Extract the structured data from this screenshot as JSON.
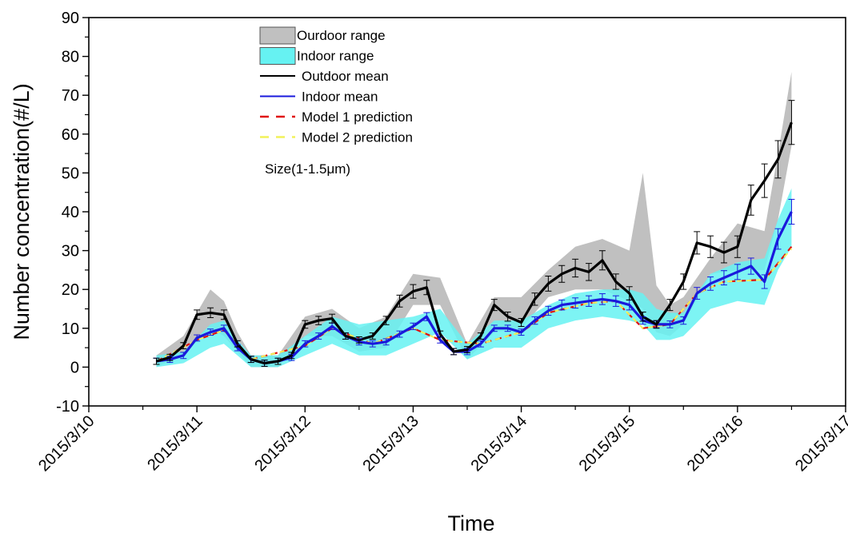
{
  "chart_data": {
    "type": "line",
    "xlabel": "Time",
    "ylabel": "Number concentration(#/L)",
    "ylim": [
      -10,
      90
    ],
    "yticks": [
      -10,
      0,
      10,
      20,
      30,
      40,
      50,
      60,
      70,
      80,
      90
    ],
    "xlim": [
      "2015/3/10",
      "2015/3/17"
    ],
    "xticks": [
      "2015/3/10",
      "2015/3/11",
      "2015/3/12",
      "2015/3/13",
      "2015/3/14",
      "2015/3/15",
      "2015/3/16",
      "2015/3/17"
    ],
    "legend_position": "top-left",
    "annotation": "Size(1-1.5μm)",
    "legend": [
      {
        "label": "Ourdoor range",
        "kind": "band",
        "color": "#c0c0c0"
      },
      {
        "label": "Indoor range",
        "kind": "band",
        "color": "#66f2f2"
      },
      {
        "label": "Outdoor mean",
        "kind": "line",
        "color": "#000000"
      },
      {
        "label": "Indoor mean",
        "kind": "line",
        "color": "#1a1adc"
      },
      {
        "label": "Model 1 prediction",
        "kind": "dash",
        "color": "#e01010"
      },
      {
        "label": "Model 2 prediction",
        "kind": "dash",
        "color": "#f2f25a"
      }
    ],
    "series": [
      {
        "name": "Outdoor mean",
        "color": "#000000",
        "x": [
          "2015/3/10 15:00",
          "2015/3/10 18:00",
          "2015/3/10 21:00",
          "2015/3/11 00:00",
          "2015/3/11 03:00",
          "2015/3/11 06:00",
          "2015/3/11 09:00",
          "2015/3/11 12:00",
          "2015/3/11 15:00",
          "2015/3/11 18:00",
          "2015/3/11 21:00",
          "2015/3/12 00:00",
          "2015/3/12 03:00",
          "2015/3/12 06:00",
          "2015/3/12 09:00",
          "2015/3/12 12:00",
          "2015/3/12 15:00",
          "2015/3/12 18:00",
          "2015/3/12 21:00",
          "2015/3/13 00:00",
          "2015/3/13 03:00",
          "2015/3/13 06:00",
          "2015/3/13 09:00",
          "2015/3/13 12:00",
          "2015/3/13 15:00",
          "2015/3/13 18:00",
          "2015/3/13 21:00",
          "2015/3/14 00:00",
          "2015/3/14 03:00",
          "2015/3/14 06:00",
          "2015/3/14 09:00",
          "2015/3/14 12:00",
          "2015/3/14 15:00",
          "2015/3/14 18:00",
          "2015/3/14 21:00",
          "2015/3/15 00:00",
          "2015/3/15 03:00",
          "2015/3/15 06:00",
          "2015/3/15 09:00",
          "2015/3/15 12:00",
          "2015/3/15 15:00",
          "2015/3/15 18:00",
          "2015/3/15 21:00",
          "2015/3/16 00:00",
          "2015/3/16 03:00",
          "2015/3/16 06:00",
          "2015/3/16 09:00",
          "2015/3/16 12:00"
        ],
        "values": [
          1.5,
          2.5,
          5.5,
          13.5,
          14.0,
          13.5,
          6.0,
          2.0,
          1.0,
          1.5,
          3.0,
          11.0,
          12.0,
          12.5,
          8.0,
          7.0,
          8.0,
          12.0,
          17.0,
          19.5,
          20.5,
          8.5,
          4.0,
          4.5,
          8.0,
          16.0,
          13.0,
          11.5,
          17.5,
          21.5,
          24.0,
          25.5,
          24.5,
          27.5,
          22.0,
          19.0,
          13.0,
          11.0,
          16.0,
          22.0,
          32.0,
          31.0,
          29.5,
          31.0,
          43.0,
          48.0,
          53.5,
          63.0
        ]
      },
      {
        "name": "Indoor mean",
        "color": "#1a1adc",
        "x": [
          "2015/3/10 15:00",
          "2015/3/10 18:00",
          "2015/3/10 21:00",
          "2015/3/11 00:00",
          "2015/3/11 03:00",
          "2015/3/11 06:00",
          "2015/3/11 09:00",
          "2015/3/11 12:00",
          "2015/3/11 15:00",
          "2015/3/11 18:00",
          "2015/3/11 21:00",
          "2015/3/12 00:00",
          "2015/3/12 03:00",
          "2015/3/12 06:00",
          "2015/3/12 09:00",
          "2015/3/12 12:00",
          "2015/3/12 15:00",
          "2015/3/12 18:00",
          "2015/3/12 21:00",
          "2015/3/13 00:00",
          "2015/3/13 03:00",
          "2015/3/13 06:00",
          "2015/3/13 09:00",
          "2015/3/13 12:00",
          "2015/3/13 15:00",
          "2015/3/13 18:00",
          "2015/3/13 21:00",
          "2015/3/14 00:00",
          "2015/3/14 03:00",
          "2015/3/14 06:00",
          "2015/3/14 09:00",
          "2015/3/14 12:00",
          "2015/3/14 15:00",
          "2015/3/14 18:00",
          "2015/3/14 21:00",
          "2015/3/15 00:00",
          "2015/3/15 03:00",
          "2015/3/15 06:00",
          "2015/3/15 09:00",
          "2015/3/15 12:00",
          "2015/3/15 15:00",
          "2015/3/15 18:00",
          "2015/3/15 21:00",
          "2015/3/16 00:00",
          "2015/3/16 03:00",
          "2015/3/16 06:00",
          "2015/3/16 09:00",
          "2015/3/16 12:00"
        ],
        "values": [
          1.5,
          2.0,
          3.0,
          7.5,
          9.0,
          10.0,
          5.0,
          2.0,
          1.0,
          1.5,
          2.5,
          6.0,
          8.0,
          10.5,
          8.0,
          6.5,
          6.0,
          6.5,
          8.5,
          10.5,
          13.0,
          7.0,
          4.0,
          4.0,
          6.0,
          10.0,
          10.0,
          9.0,
          12.0,
          14.5,
          16.0,
          16.5,
          17.0,
          17.5,
          17.0,
          16.0,
          12.0,
          11.0,
          11.0,
          12.0,
          19.0,
          21.5,
          23.0,
          24.5,
          26.0,
          22.0,
          33.0,
          40.0
        ]
      },
      {
        "name": "Model 1 prediction",
        "color": "#e01010",
        "x": [
          "2015/3/10 15:00",
          "2015/3/11 00:00",
          "2015/3/11 06:00",
          "2015/3/11 12:00",
          "2015/3/12 00:00",
          "2015/3/12 06:00",
          "2015/3/12 15:00",
          "2015/3/13 00:00",
          "2015/3/13 06:00",
          "2015/3/13 15:00",
          "2015/3/14 00:00",
          "2015/3/14 06:00",
          "2015/3/14 15:00",
          "2015/3/14 21:00",
          "2015/3/15 03:00",
          "2015/3/15 09:00",
          "2015/3/15 15:00",
          "2015/3/15 21:00",
          "2015/3/16 06:00",
          "2015/3/16 12:00"
        ],
        "values": [
          1.5,
          7.0,
          9.5,
          2.0,
          5.5,
          10.0,
          6.0,
          10.0,
          7.0,
          6.0,
          9.0,
          14.0,
          16.5,
          17.0,
          10.0,
          11.0,
          19.0,
          22.0,
          22.5,
          31.0
        ]
      },
      {
        "name": "Model 2 prediction",
        "color": "#f2f25a",
        "x": [
          "2015/3/10 15:00",
          "2015/3/11 00:00",
          "2015/3/11 06:00",
          "2015/3/11 12:00",
          "2015/3/12 00:00",
          "2015/3/12 06:00",
          "2015/3/12 15:00",
          "2015/3/13 00:00",
          "2015/3/13 06:00",
          "2015/3/13 15:00",
          "2015/3/14 00:00",
          "2015/3/14 06:00",
          "2015/3/14 15:00",
          "2015/3/14 21:00",
          "2015/3/15 03:00",
          "2015/3/15 09:00",
          "2015/3/15 15:00",
          "2015/3/15 21:00",
          "2015/3/16 06:00",
          "2015/3/16 12:00"
        ],
        "values": [
          1.5,
          7.0,
          9.5,
          2.0,
          5.5,
          10.0,
          6.0,
          10.0,
          7.0,
          6.0,
          9.0,
          14.0,
          16.5,
          17.0,
          10.0,
          11.0,
          19.0,
          22.0,
          22.5,
          30.5
        ]
      }
    ],
    "bands": [
      {
        "name": "Ourdoor range",
        "color": "#c0c0c0",
        "x": [
          "2015/3/10 15:00",
          "2015/3/10 21:00",
          "2015/3/11 03:00",
          "2015/3/11 06:00",
          "2015/3/11 09:00",
          "2015/3/11 12:00",
          "2015/3/11 18:00",
          "2015/3/12 00:00",
          "2015/3/12 06:00",
          "2015/3/12 12:00",
          "2015/3/12 18:00",
          "2015/3/13 00:00",
          "2015/3/13 06:00",
          "2015/3/13 12:00",
          "2015/3/13 18:00",
          "2015/3/14 00:00",
          "2015/3/14 06:00",
          "2015/3/14 12:00",
          "2015/3/14 18:00",
          "2015/3/15 00:00",
          "2015/3/15 03:00",
          "2015/3/15 06:00",
          "2015/3/15 09:00",
          "2015/3/15 12:00",
          "2015/3/15 18:00",
          "2015/3/16 00:00",
          "2015/3/16 06:00",
          "2015/3/16 09:00",
          "2015/3/16 12:00"
        ],
        "upper": [
          3,
          8,
          20,
          17,
          9,
          3,
          3,
          13,
          15,
          10,
          13,
          24,
          23,
          6,
          18,
          18,
          25,
          31,
          33,
          30,
          50,
          21,
          16,
          18,
          28,
          37,
          35,
          55,
          76
        ],
        "lower": [
          0,
          3,
          10,
          8,
          4,
          0,
          0,
          8,
          8,
          4,
          5,
          16,
          16,
          2,
          9,
          10,
          18,
          20,
          20,
          17,
          15,
          9,
          8,
          11,
          24,
          25,
          25,
          38,
          57
        ]
      },
      {
        "name": "Indoor range",
        "color": "#66f2f2",
        "x": [
          "2015/3/10 15:00",
          "2015/3/10 21:00",
          "2015/3/11 03:00",
          "2015/3/11 06:00",
          "2015/3/11 09:00",
          "2015/3/11 12:00",
          "2015/3/11 18:00",
          "2015/3/12 00:00",
          "2015/3/12 06:00",
          "2015/3/12 12:00",
          "2015/3/12 18:00",
          "2015/3/13 00:00",
          "2015/3/13 06:00",
          "2015/3/13 12:00",
          "2015/3/13 18:00",
          "2015/3/14 00:00",
          "2015/3/14 06:00",
          "2015/3/14 12:00",
          "2015/3/14 18:00",
          "2015/3/15 00:00",
          "2015/3/15 03:00",
          "2015/3/15 06:00",
          "2015/3/15 09:00",
          "2015/3/15 12:00",
          "2015/3/15 18:00",
          "2015/3/16 00:00",
          "2015/3/16 06:00",
          "2015/3/16 09:00",
          "2015/3/16 12:00"
        ],
        "upper": [
          3,
          4,
          11,
          12,
          7,
          3,
          3,
          8,
          13,
          11,
          12,
          13,
          15,
          6,
          12,
          12,
          16,
          19,
          20,
          20,
          19,
          15,
          14,
          14,
          24,
          27,
          28,
          38,
          46
        ],
        "lower": [
          0,
          1,
          5,
          6,
          3,
          0,
          0,
          3,
          6,
          3,
          3,
          6,
          9,
          2,
          5,
          5,
          10,
          12,
          13,
          12,
          11,
          7,
          7,
          8,
          15,
          17,
          16,
          25,
          31
        ]
      }
    ]
  }
}
